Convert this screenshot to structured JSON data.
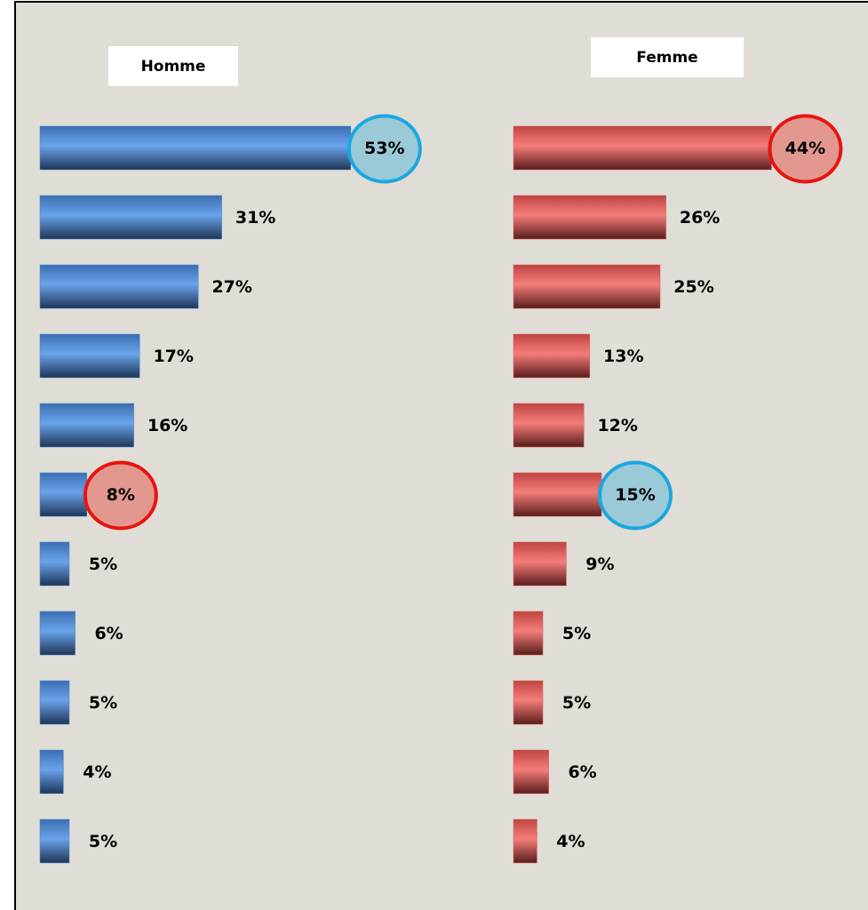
{
  "chart_data": [
    {
      "type": "bar",
      "title": "Homme",
      "color": "#4a86d0",
      "values": [
        53,
        31,
        27,
        17,
        16,
        8,
        5,
        6,
        5,
        4,
        5
      ],
      "value_labels": [
        "53%",
        "31%",
        "27%",
        "17%",
        "16%",
        "8%",
        "5%",
        "6%",
        "5%",
        "4%",
        "5%"
      ],
      "highlights": [
        {
          "index": 0,
          "color": "#1aa7e0"
        },
        {
          "index": 5,
          "color": "#e8140f"
        }
      ]
    },
    {
      "type": "bar",
      "title": "Femme",
      "color": "#d85a58",
      "values": [
        44,
        26,
        25,
        13,
        12,
        15,
        9,
        5,
        5,
        6,
        4
      ],
      "value_labels": [
        "44%",
        "26%",
        "25%",
        "13%",
        "12%",
        "15%",
        "9%",
        "5%",
        "5%",
        "6%",
        "4%"
      ],
      "highlights": [
        {
          "index": 0,
          "color": "#e8140f"
        },
        {
          "index": 5,
          "color": "#1aa7e0"
        }
      ]
    }
  ]
}
